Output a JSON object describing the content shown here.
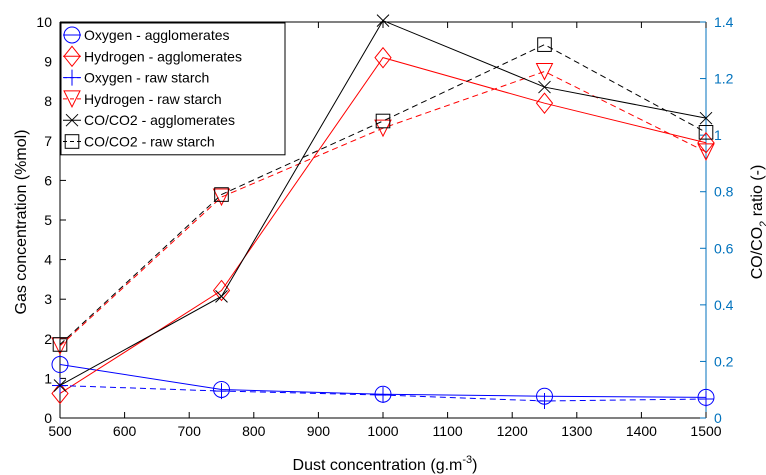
{
  "chart_data": {
    "type": "line",
    "xlabel": "Dust concentration (g.m",
    "xlabel_sup": "-3",
    "xlabel_tail": ")",
    "ylabel_left": "Gas concentration (%mol)",
    "ylabel_right_pre": "CO/CO",
    "ylabel_right_sub": "2",
    "ylabel_right_post": " ratio (-)",
    "xlim": [
      500,
      1500
    ],
    "ylim_left": [
      0,
      10
    ],
    "ylim_right": [
      0,
      1.4
    ],
    "x_ticks": [
      500,
      600,
      700,
      800,
      900,
      1000,
      1100,
      1200,
      1300,
      1400,
      1500
    ],
    "y_ticks_left": [
      0,
      1,
      2,
      3,
      4,
      5,
      6,
      7,
      8,
      9,
      10
    ],
    "y_ticks_right": [
      "0",
      "0.2",
      "0.4",
      "0.6",
      "0.8",
      "1",
      "1.2",
      "1.4"
    ],
    "y_ticks_right_values": [
      0,
      0.2,
      0.4,
      0.6,
      0.8,
      1.0,
      1.2,
      1.4
    ],
    "grid": false,
    "legend_position": "top-left",
    "colors": {
      "blue": "#0000ff",
      "red": "#ff0000",
      "black": "#000000",
      "right_axis": "#0072bd"
    },
    "x": [
      500,
      750,
      1000,
      1250,
      1500
    ],
    "series": [
      {
        "name": "Oxygen - agglomerates",
        "axis": "left",
        "color": "#0000ff",
        "marker": "circle",
        "dash": "solid",
        "values": [
          1.35,
          0.72,
          0.6,
          0.55,
          0.52
        ]
      },
      {
        "name": "Hydrogen - agglomerates",
        "axis": "left",
        "color": "#ff0000",
        "marker": "diamond",
        "dash": "solid",
        "values": [
          0.62,
          3.22,
          9.1,
          7.95,
          6.95
        ]
      },
      {
        "name": "Oxygen - raw starch",
        "axis": "left",
        "color": "#0000ff",
        "marker": "plus",
        "dash": "dashed",
        "values": [
          0.82,
          0.68,
          0.58,
          0.43,
          0.48
        ]
      },
      {
        "name": "Hydrogen - raw starch",
        "axis": "left",
        "color": "#ff0000",
        "marker": "triangle-down",
        "dash": "dashed",
        "values": [
          1.82,
          5.58,
          7.32,
          8.75,
          6.72
        ]
      },
      {
        "name": "CO/CO2 - agglomerates",
        "axis": "right",
        "color": "#000000",
        "marker": "x",
        "dash": "solid",
        "values": [
          0.115,
          0.43,
          1.405,
          1.17,
          1.06
        ]
      },
      {
        "name": "CO/CO2 - raw starch",
        "axis": "right",
        "color": "#000000",
        "marker": "square",
        "dash": "dashed",
        "values": [
          0.26,
          0.79,
          1.05,
          1.32,
          1.01
        ]
      }
    ]
  }
}
